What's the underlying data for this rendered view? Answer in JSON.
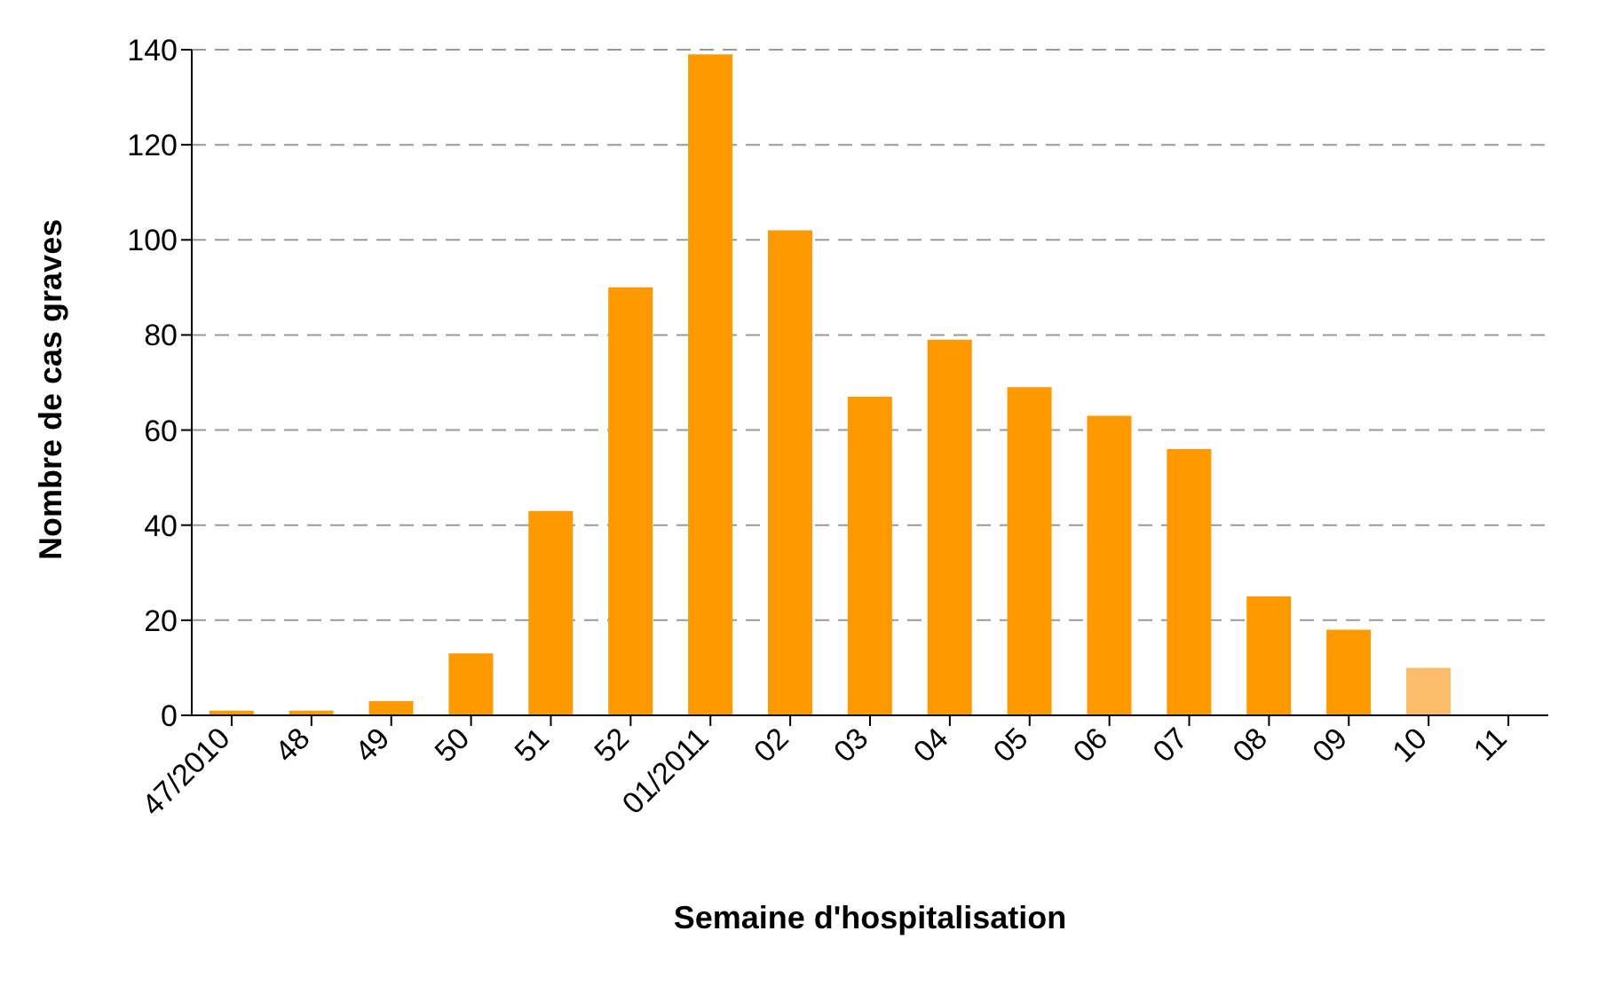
{
  "chart_data": {
    "type": "bar",
    "xlabel": "Semaine d'hospitalisation",
    "ylabel": "Nombre de cas graves",
    "categories": [
      "47/2010",
      "48",
      "49",
      "50",
      "51",
      "52",
      "01/2011",
      "02",
      "03",
      "04",
      "05",
      "06",
      "07",
      "08",
      "09",
      "10",
      "11"
    ],
    "values": [
      1,
      1,
      3,
      13,
      43,
      90,
      139,
      102,
      67,
      79,
      69,
      63,
      56,
      25,
      18,
      10,
      null
    ],
    "colors": [
      "#ff9900",
      "#ff9900",
      "#ff9900",
      "#ff9900",
      "#ff9900",
      "#ff9900",
      "#ff9900",
      "#ff9900",
      "#ff9900",
      "#ff9900",
      "#ff9900",
      "#ff9900",
      "#ff9900",
      "#ff9900",
      "#ff9900",
      "#fbbd6a",
      "#ff9900"
    ],
    "ylim": [
      0,
      140
    ],
    "yticks": [
      0,
      20,
      40,
      60,
      80,
      100,
      120,
      140
    ],
    "grid": "y"
  }
}
